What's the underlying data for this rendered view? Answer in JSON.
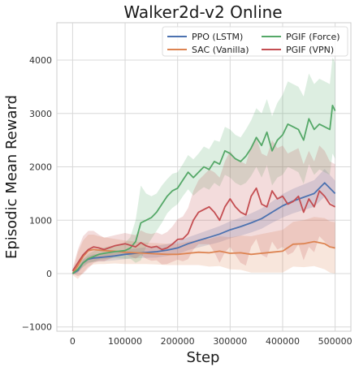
{
  "chart_data": {
    "type": "line",
    "title": "Walker2d-v2 Online",
    "xlabel": "Step",
    "ylabel": "Episodic Mean Reward",
    "xlim": [
      -30000,
      530000
    ],
    "ylim": [
      -1080,
      4700
    ],
    "xticks": [
      0,
      100000,
      200000,
      300000,
      400000,
      500000
    ],
    "xtick_labels": [
      "0",
      "100000",
      "200000",
      "300000",
      "400000",
      "500000"
    ],
    "yticks": [
      -1000,
      0,
      1000,
      2000,
      3000,
      4000
    ],
    "ytick_labels": [
      "−1000",
      "0",
      "1000",
      "2000",
      "3000",
      "4000"
    ],
    "grid": true,
    "legend_position": "top-right",
    "legend_columns": 2,
    "series": [
      {
        "name": "PPO (LSTM)",
        "color": "#4c72b0",
        "x": [
          0,
          10000,
          20000,
          30000,
          40000,
          50000,
          60000,
          80000,
          100000,
          120000,
          140000,
          160000,
          180000,
          200000,
          220000,
          240000,
          260000,
          280000,
          300000,
          320000,
          340000,
          360000,
          380000,
          400000,
          420000,
          440000,
          460000,
          480000,
          490000,
          500000
        ],
        "y": [
          0,
          60,
          200,
          270,
          290,
          300,
          310,
          330,
          360,
          380,
          395,
          410,
          440,
          480,
          560,
          620,
          680,
          740,
          820,
          880,
          950,
          1030,
          1150,
          1270,
          1360,
          1430,
          1500,
          1700,
          1600,
          1500
        ],
        "band": [
          20,
          40,
          60,
          60,
          70,
          70,
          80,
          80,
          90,
          90,
          100,
          110,
          110,
          120,
          120,
          130,
          140,
          150,
          160,
          170,
          180,
          190,
          200,
          220,
          230,
          240,
          250,
          260,
          250,
          240
        ]
      },
      {
        "name": "SAC (Vanilla)",
        "color": "#dd8452",
        "x": [
          0,
          10000,
          20000,
          30000,
          40000,
          50000,
          60000,
          80000,
          100000,
          120000,
          140000,
          160000,
          180000,
          200000,
          220000,
          240000,
          260000,
          280000,
          300000,
          320000,
          340000,
          360000,
          380000,
          400000,
          420000,
          440000,
          460000,
          480000,
          490000,
          500000
        ],
        "y": [
          0,
          150,
          320,
          430,
          450,
          440,
          430,
          420,
          400,
          390,
          380,
          370,
          360,
          360,
          380,
          400,
          390,
          420,
          380,
          390,
          360,
          380,
          400,
          420,
          550,
          560,
          600,
          560,
          500,
          480
        ],
        "band": [
          30,
          250,
          300,
          300,
          280,
          260,
          250,
          230,
          220,
          210,
          200,
          200,
          200,
          200,
          220,
          240,
          260,
          280,
          300,
          320,
          340,
          360,
          380,
          400,
          420,
          440,
          460,
          480,
          480,
          480
        ]
      },
      {
        "name": "PGIF (Force)",
        "color": "#55a868",
        "x": [
          0,
          10000,
          20000,
          30000,
          40000,
          50000,
          60000,
          80000,
          100000,
          110000,
          120000,
          130000,
          140000,
          150000,
          160000,
          170000,
          180000,
          190000,
          200000,
          210000,
          220000,
          230000,
          240000,
          250000,
          260000,
          270000,
          280000,
          290000,
          300000,
          310000,
          320000,
          330000,
          340000,
          350000,
          360000,
          370000,
          380000,
          390000,
          400000,
          410000,
          420000,
          430000,
          440000,
          450000,
          460000,
          470000,
          480000,
          490000,
          495000,
          500000
        ],
        "y": [
          0,
          80,
          200,
          280,
          320,
          360,
          380,
          410,
          430,
          480,
          600,
          950,
          1000,
          1050,
          1150,
          1300,
          1450,
          1550,
          1600,
          1750,
          1900,
          1800,
          1900,
          2000,
          1950,
          2100,
          2050,
          2300,
          2250,
          2150,
          2100,
          2200,
          2350,
          2550,
          2400,
          2650,
          2300,
          2500,
          2600,
          2800,
          2750,
          2700,
          2500,
          2900,
          2700,
          2800,
          2750,
          2700,
          3150,
          3050
        ],
        "band": [
          20,
          60,
          80,
          90,
          100,
          100,
          110,
          120,
          150,
          200,
          400,
          700,
          500,
          400,
          350,
          350,
          320,
          320,
          300,
          300,
          320,
          340,
          350,
          380,
          380,
          400,
          420,
          450,
          450,
          450,
          450,
          500,
          520,
          550,
          600,
          620,
          650,
          700,
          750,
          800,
          800,
          800,
          820,
          850,
          850,
          850,
          850,
          850,
          900,
          900
        ]
      },
      {
        "name": "PGIF (VPN)",
        "color": "#c44e52",
        "x": [
          0,
          10000,
          20000,
          30000,
          40000,
          50000,
          60000,
          80000,
          100000,
          120000,
          130000,
          140000,
          150000,
          160000,
          170000,
          180000,
          190000,
          200000,
          210000,
          220000,
          230000,
          240000,
          250000,
          260000,
          270000,
          280000,
          290000,
          300000,
          310000,
          320000,
          330000,
          340000,
          350000,
          360000,
          370000,
          380000,
          390000,
          400000,
          410000,
          420000,
          430000,
          440000,
          450000,
          460000,
          470000,
          480000,
          490000,
          500000
        ],
        "y": [
          50,
          200,
          350,
          450,
          500,
          480,
          450,
          520,
          560,
          500,
          580,
          520,
          490,
          510,
          450,
          480,
          550,
          640,
          650,
          750,
          1000,
          1150,
          1200,
          1250,
          1150,
          1000,
          1250,
          1400,
          1250,
          1150,
          1100,
          1450,
          1600,
          1300,
          1250,
          1550,
          1400,
          1450,
          1300,
          1350,
          1450,
          1150,
          1400,
          1250,
          1550,
          1450,
          1300,
          1250
        ],
        "band": [
          50,
          250,
          350,
          350,
          300,
          250,
          220,
          200,
          200,
          220,
          230,
          240,
          250,
          260,
          280,
          300,
          330,
          380,
          420,
          480,
          550,
          600,
          650,
          700,
          750,
          800,
          850,
          900,
          900,
          950,
          950,
          950,
          950,
          950,
          950,
          950,
          950,
          950,
          950,
          950,
          900,
          900,
          900,
          850,
          850,
          850,
          800,
          800
        ]
      }
    ]
  }
}
